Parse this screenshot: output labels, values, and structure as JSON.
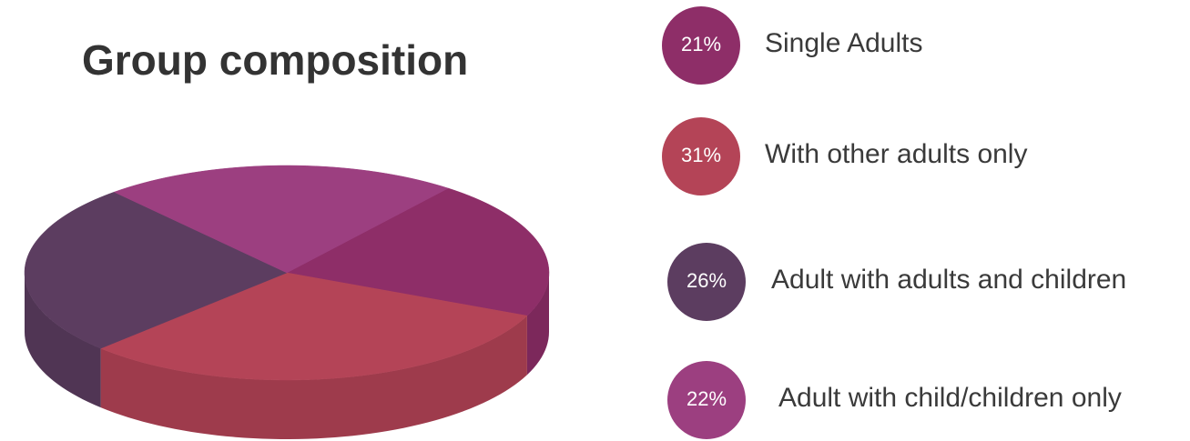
{
  "chart_data": {
    "type": "pie",
    "title": "Group composition",
    "categories": [
      "Single Adults",
      "With other adults only",
      "Adult with adults and children",
      "Adult with child/children only"
    ],
    "values": [
      21,
      31,
      26,
      22
    ],
    "value_labels": [
      "21%",
      "31%",
      "26%",
      "22%"
    ],
    "colors": [
      "#8e2e68",
      "#b44457",
      "#5c3d60",
      "#9c3f80"
    ]
  }
}
